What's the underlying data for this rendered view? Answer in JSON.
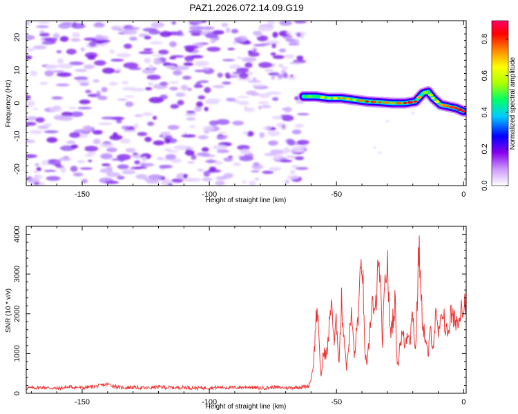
{
  "figure_title": "PAZ1.2026.072.14.09.G19",
  "chart_data": [
    {
      "type": "heatmap",
      "title": "PAZ1.2026.072.14.09.G19",
      "xlabel": "Height of straight line (km)",
      "ylabel": "Frequency (Hz)",
      "xlim": [
        -172,
        1
      ],
      "ylim": [
        -25,
        25
      ],
      "xticks": [
        -150,
        -100,
        -50,
        0
      ],
      "yticks": [
        -20,
        -10,
        0,
        10,
        20
      ],
      "noise_region_km": [
        -172,
        -62
      ],
      "signal_trace": {
        "x": [
          -63,
          -58,
          -53,
          -48,
          -43,
          -38,
          -33,
          -28,
          -23,
          -19,
          -16,
          -14,
          -12,
          -9,
          -6,
          -3,
          0
        ],
        "freq_hz": [
          2,
          2,
          1.5,
          1.5,
          1,
          0.5,
          0.3,
          0,
          0,
          0.5,
          3,
          3.5,
          1.5,
          -0.5,
          -1,
          -1.5,
          -2.5
        ],
        "amplitude": [
          0.45,
          0.55,
          0.6,
          0.7,
          0.65,
          0.8,
          0.75,
          0.7,
          0.8,
          0.85,
          0.55,
          0.5,
          0.6,
          0.7,
          0.75,
          0.8,
          0.85
        ]
      },
      "colorbar": {
        "label": "Normalized spectral amplitude",
        "range": [
          0,
          0.9
        ],
        "ticks": [
          0.0,
          0.2,
          0.4,
          0.6,
          0.8
        ],
        "colors": [
          "#ffffff",
          "#cc99ff",
          "#8800ee",
          "#0000ff",
          "#00ccff",
          "#00ff66",
          "#aaff00",
          "#ffff00",
          "#ff8800",
          "#ff0000",
          "#ff0066"
        ]
      }
    },
    {
      "type": "line",
      "xlabel": "Height of straight line (km)",
      "ylabel": "SNR (10 * v/v)",
      "xlim": [
        -172,
        1
      ],
      "ylim": [
        0,
        4200
      ],
      "xticks": [
        -150,
        -100,
        -50,
        0
      ],
      "yticks": [
        0,
        1000,
        2000,
        3000,
        4000
      ],
      "color": "#ee3333",
      "series": [
        {
          "name": "SNR",
          "x": [
            -172,
            -165,
            -160,
            -155,
            -150,
            -145,
            -140,
            -135,
            -130,
            -125,
            -120,
            -115,
            -110,
            -105,
            -100,
            -95,
            -90,
            -85,
            -80,
            -75,
            -70,
            -65,
            -61,
            -60,
            -59,
            -58,
            -57.5,
            -57,
            -56,
            -55,
            -54,
            -53,
            -52,
            -51,
            -50,
            -49,
            -48,
            -47,
            -46,
            -45,
            -44,
            -43,
            -42,
            -41,
            -40,
            -39.5,
            -39,
            -38,
            -37,
            -36,
            -35,
            -34,
            -33,
            -32,
            -31,
            -30,
            -29,
            -28,
            -27,
            -26,
            -25,
            -24,
            -23,
            -22,
            -21,
            -20,
            -19,
            -18,
            -17.5,
            -17,
            -16,
            -15,
            -14,
            -13,
            -12,
            -11,
            -10,
            -9,
            -8,
            -7,
            -6,
            -5,
            -4,
            -3,
            -2,
            -1,
            0,
            1
          ],
          "values": [
            130,
            150,
            120,
            160,
            140,
            170,
            230,
            140,
            150,
            130,
            160,
            140,
            150,
            130,
            140,
            150,
            140,
            160,
            130,
            150,
            140,
            150,
            180,
            350,
            800,
            1900,
            2200,
            1300,
            400,
            1100,
            900,
            1500,
            2500,
            1200,
            1800,
            800,
            2300,
            1400,
            600,
            1400,
            2000,
            900,
            1600,
            2400,
            3500,
            2600,
            1200,
            600,
            1500,
            2400,
            1800,
            2800,
            3200,
            1200,
            2600,
            3400,
            1500,
            1800,
            2300,
            600,
            1300,
            1500,
            1200,
            1600,
            1400,
            2100,
            1000,
            2700,
            4100,
            2500,
            1800,
            1300,
            900,
            1600,
            1200,
            1900,
            1500,
            1700,
            2200,
            1500,
            1600,
            2000,
            1800,
            1900,
            1700,
            2400,
            2100,
            2500
          ]
        }
      ]
    }
  ]
}
